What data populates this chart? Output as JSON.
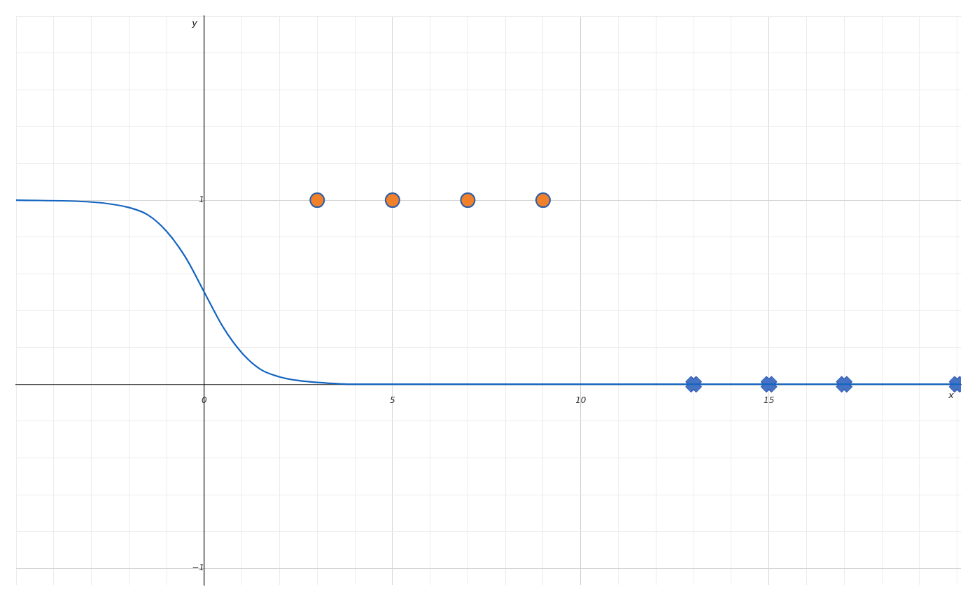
{
  "chart_data": {
    "type": "line",
    "xlabel": "x",
    "ylabel": "y",
    "xlim": [
      -5,
      20.1
    ],
    "ylim": [
      -1.09,
      2
    ],
    "xticks": [
      {
        "value": -5,
        "label": null
      },
      {
        "value": -4,
        "label": null
      },
      {
        "value": -3,
        "label": null
      },
      {
        "value": -2,
        "label": null
      },
      {
        "value": -1,
        "label": null
      },
      {
        "value": 0,
        "label": "0"
      },
      {
        "value": 1,
        "label": null
      },
      {
        "value": 2,
        "label": null
      },
      {
        "value": 3,
        "label": null
      },
      {
        "value": 4,
        "label": null
      },
      5,
      {
        "value": 6,
        "label": null
      },
      {
        "value": 7,
        "label": null
      },
      {
        "value": 8,
        "label": null
      },
      {
        "value": 9,
        "label": null
      },
      10,
      {
        "value": 11,
        "label": null
      },
      {
        "value": 12,
        "label": null
      },
      {
        "value": 13,
        "label": null
      },
      {
        "value": 14,
        "label": null
      },
      15,
      {
        "value": 16,
        "label": null
      },
      {
        "value": 17,
        "label": null
      },
      {
        "value": 18,
        "label": null
      },
      {
        "value": 19,
        "label": null
      },
      {
        "value": 20,
        "label": null
      }
    ],
    "yticks": [
      {
        "value": -1,
        "label": "−1"
      },
      {
        "value": -0.8,
        "label": null
      },
      {
        "value": -0.6,
        "label": null
      },
      {
        "value": -0.4,
        "label": null
      },
      {
        "value": -0.2,
        "label": null
      },
      {
        "value": 0,
        "label": null
      },
      {
        "value": 0.2,
        "label": null
      },
      {
        "value": 0.4,
        "label": null
      },
      {
        "value": 0.6,
        "label": null
      },
      {
        "value": 0.8,
        "label": null
      },
      1,
      {
        "value": 1.2,
        "label": null
      },
      {
        "value": 1.4,
        "label": null
      },
      {
        "value": 1.6,
        "label": null
      },
      {
        "value": 1.8,
        "label": null
      },
      {
        "value": 2,
        "label": null
      }
    ],
    "grid": true,
    "legend": false,
    "series": [
      {
        "type": "line",
        "color": "#1565c0",
        "marker": "none",
        "line_style": "solid",
        "x": [
          -5,
          -3,
          -2,
          -1.5,
          -1,
          -0.5,
          0,
          0.5,
          1,
          1.5,
          2,
          2.5,
          3,
          4,
          20.1
        ],
        "values": [
          1,
          0.99,
          0.96,
          0.92,
          0.83,
          0.69,
          0.5,
          0.31,
          0.17,
          0.08,
          0.04,
          0.02,
          0.01,
          0,
          0
        ]
      },
      {
        "type": "scatter",
        "color": "#f0812a",
        "marker": "circle",
        "x": [
          3,
          5,
          7,
          9
        ],
        "values": [
          1,
          1,
          1,
          1
        ]
      },
      {
        "type": "scatter",
        "color": "#4472c4",
        "marker": "cross",
        "x": [
          13,
          15,
          17,
          20
        ],
        "values": [
          0,
          0,
          0,
          0
        ]
      }
    ]
  }
}
